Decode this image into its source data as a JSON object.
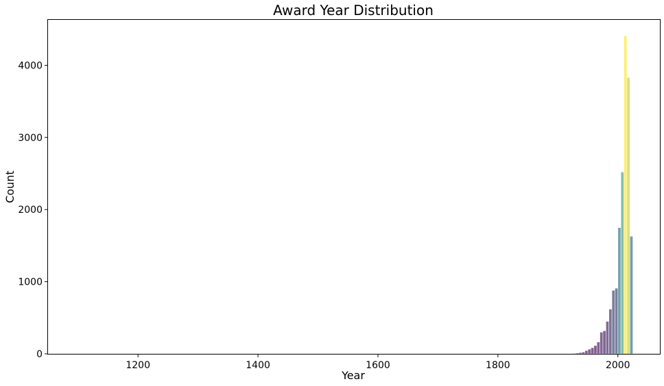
{
  "chart_data": {
    "type": "bar",
    "title": "Award Year Distribution",
    "xlabel": "Year",
    "ylabel": "Count",
    "xlim": [
      1050,
      2070
    ],
    "ylim": [
      0,
      4630
    ],
    "x_ticks": [
      "1200",
      "1400",
      "1600",
      "1800",
      "2000"
    ],
    "y_ticks": [
      "0",
      "1000",
      "2000",
      "3000",
      "4000"
    ],
    "grid": false,
    "legend": "none",
    "bin_width": 5,
    "x": [
      1920,
      1925,
      1930,
      1935,
      1940,
      1945,
      1950,
      1955,
      1960,
      1965,
      1970,
      1975,
      1980,
      1985,
      1990,
      1995,
      2000,
      2005,
      2010,
      2015
    ],
    "values": [
      5,
      8,
      12,
      18,
      25,
      45,
      65,
      85,
      115,
      165,
      300,
      320,
      450,
      620,
      880,
      910,
      1750,
      2520,
      4410,
      3830
    ],
    "extra_bars": [
      {
        "x": 2020,
        "value": 1630
      }
    ],
    "colors": {
      "low": "#440154",
      "mid": "#21918c",
      "high": "#fde725"
    }
  }
}
